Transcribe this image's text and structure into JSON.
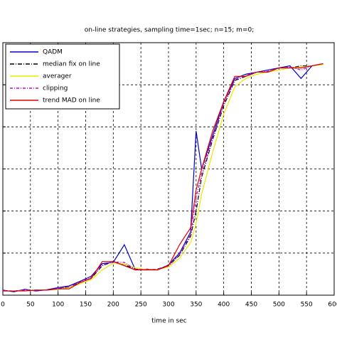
{
  "chart_data": {
    "type": "line",
    "title": "on-line strategies, sampling time=1sec; n=15; m=0;",
    "x_label": "time in sec",
    "x": [
      0,
      20,
      40,
      60,
      80,
      100,
      120,
      140,
      160,
      180,
      200,
      220,
      240,
      260,
      280,
      300,
      320,
      340,
      350,
      360,
      380,
      400,
      420,
      440,
      460,
      480,
      500,
      520,
      540,
      560,
      580
    ],
    "series": [
      {
        "name": "QADM",
        "color": "#0000cc",
        "dash": "",
        "values": [
          0.12,
          0.08,
          0.14,
          0.1,
          0.13,
          0.18,
          0.22,
          0.33,
          0.45,
          0.75,
          0.78,
          1.2,
          0.6,
          0.62,
          0.6,
          0.72,
          1.0,
          1.5,
          3.9,
          3.0,
          3.8,
          4.6,
          5.15,
          5.25,
          5.3,
          5.35,
          5.4,
          5.45,
          5.15,
          5.45,
          5.5
        ]
      },
      {
        "name": "median fix on line",
        "color": "#000000",
        "dash": "6 2 1 2",
        "values": [
          0.1,
          0.1,
          0.12,
          0.12,
          0.12,
          0.15,
          0.2,
          0.3,
          0.4,
          0.7,
          0.8,
          0.72,
          0.62,
          0.6,
          0.62,
          0.7,
          0.95,
          1.4,
          2.0,
          2.8,
          3.7,
          4.5,
          5.1,
          5.2,
          5.3,
          5.3,
          5.4,
          5.4,
          5.45,
          5.45,
          5.5
        ]
      },
      {
        "name": "averager",
        "color": "#e8e800",
        "dash": "",
        "values": [
          0.1,
          0.1,
          0.11,
          0.12,
          0.12,
          0.14,
          0.18,
          0.27,
          0.37,
          0.6,
          0.76,
          0.74,
          0.65,
          0.61,
          0.61,
          0.67,
          0.88,
          1.25,
          1.7,
          2.4,
          3.4,
          4.3,
          4.95,
          5.15,
          5.25,
          5.3,
          5.35,
          5.4,
          5.42,
          5.45,
          5.48
        ]
      },
      {
        "name": "clipping",
        "color": "#cc00cc",
        "dash": "4 2 1 2",
        "values": [
          0.11,
          0.1,
          0.12,
          0.11,
          0.12,
          0.16,
          0.21,
          0.31,
          0.42,
          0.72,
          0.79,
          0.78,
          0.61,
          0.61,
          0.61,
          0.71,
          0.97,
          1.45,
          2.3,
          2.9,
          3.75,
          4.55,
          5.12,
          5.22,
          5.3,
          5.32,
          5.4,
          5.42,
          5.35,
          5.45,
          5.5
        ]
      },
      {
        "name": "trend MAD on line",
        "color": "#dd0000",
        "dash": "",
        "values": [
          0.1,
          0.1,
          0.1,
          0.12,
          0.12,
          0.15,
          0.15,
          0.3,
          0.4,
          0.8,
          0.8,
          0.7,
          0.6,
          0.6,
          0.6,
          0.7,
          1.2,
          1.6,
          2.5,
          3.0,
          3.9,
          4.6,
          5.2,
          5.2,
          5.3,
          5.3,
          5.4,
          5.4,
          5.4,
          5.45,
          5.5
        ]
      }
    ],
    "xlim": [
      0,
      600
    ],
    "xticks": [
      0,
      50,
      100,
      150,
      200,
      250,
      300,
      350,
      400,
      450,
      500,
      550,
      600
    ],
    "ylim": [
      0,
      6
    ],
    "yticks": [
      1,
      2,
      3,
      4,
      5
    ],
    "grid": true,
    "legend": "top-left"
  }
}
